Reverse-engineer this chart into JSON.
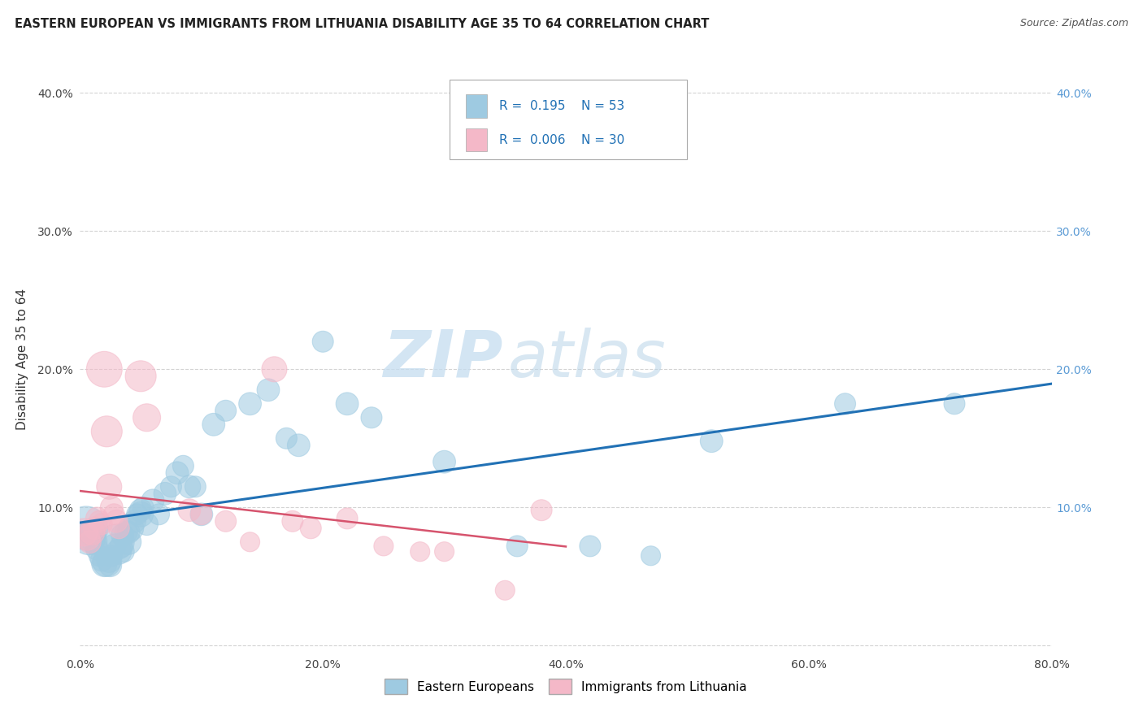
{
  "title": "EASTERN EUROPEAN VS IMMIGRANTS FROM LITHUANIA DISABILITY AGE 35 TO 64 CORRELATION CHART",
  "source": "Source: ZipAtlas.com",
  "ylabel": "Disability Age 35 to 64",
  "xlim": [
    0.0,
    0.8
  ],
  "ylim": [
    -0.005,
    0.42
  ],
  "xticks": [
    0.0,
    0.2,
    0.4,
    0.6,
    0.8
  ],
  "xticklabels": [
    "0.0%",
    "20.0%",
    "40.0%",
    "60.0%",
    "80.0%"
  ],
  "yticks": [
    0.0,
    0.1,
    0.2,
    0.3,
    0.4
  ],
  "yticklabels_left": [
    "",
    "10.0%",
    "20.0%",
    "30.0%",
    "40.0%"
  ],
  "yticklabels_right": [
    "",
    "10.0%",
    "20.0%",
    "30.0%",
    "40.0%"
  ],
  "legend_R1": "0.195",
  "legend_N1": "53",
  "legend_R2": "0.006",
  "legend_N2": "30",
  "blue_color": "#9ecae1",
  "pink_color": "#f4b8c8",
  "blue_line_color": "#2171b5",
  "pink_line_color": "#d6536d",
  "grid_color": "#c8c8c8",
  "blue_scatter_x": [
    0.005,
    0.007,
    0.01,
    0.012,
    0.014,
    0.016,
    0.018,
    0.02,
    0.022,
    0.024,
    0.025,
    0.026,
    0.028,
    0.03,
    0.032,
    0.034,
    0.035,
    0.036,
    0.038,
    0.04,
    0.04,
    0.042,
    0.045,
    0.047,
    0.05,
    0.05,
    0.052,
    0.055,
    0.06,
    0.065,
    0.07,
    0.075,
    0.08,
    0.085,
    0.09,
    0.095,
    0.1,
    0.11,
    0.12,
    0.14,
    0.155,
    0.17,
    0.18,
    0.2,
    0.22,
    0.24,
    0.3,
    0.36,
    0.42,
    0.47,
    0.52,
    0.63,
    0.72
  ],
  "blue_scatter_y": [
    0.085,
    0.078,
    0.082,
    0.075,
    0.07,
    0.065,
    0.062,
    0.059,
    0.06,
    0.062,
    0.058,
    0.065,
    0.072,
    0.075,
    0.068,
    0.072,
    0.08,
    0.068,
    0.082,
    0.075,
    0.082,
    0.085,
    0.09,
    0.095,
    0.095,
    0.098,
    0.1,
    0.088,
    0.105,
    0.095,
    0.11,
    0.115,
    0.125,
    0.13,
    0.115,
    0.115,
    0.095,
    0.16,
    0.17,
    0.175,
    0.185,
    0.15,
    0.145,
    0.22,
    0.175,
    0.165,
    0.133,
    0.072,
    0.072,
    0.065,
    0.148,
    0.175,
    0.175
  ],
  "blue_scatter_size": [
    300,
    180,
    120,
    100,
    80,
    70,
    80,
    100,
    120,
    100,
    80,
    70,
    90,
    200,
    100,
    80,
    80,
    70,
    80,
    100,
    80,
    100,
    80,
    70,
    100,
    80,
    70,
    80,
    80,
    70,
    80,
    70,
    80,
    70,
    80,
    70,
    80,
    80,
    70,
    80,
    80,
    70,
    80,
    70,
    80,
    70,
    80,
    70,
    70,
    60,
    80,
    70,
    70
  ],
  "pink_scatter_x": [
    0.003,
    0.006,
    0.008,
    0.01,
    0.012,
    0.014,
    0.016,
    0.018,
    0.02,
    0.022,
    0.024,
    0.026,
    0.028,
    0.03,
    0.032,
    0.05,
    0.055,
    0.09,
    0.1,
    0.12,
    0.14,
    0.16,
    0.175,
    0.19,
    0.22,
    0.25,
    0.28,
    0.3,
    0.35,
    0.38
  ],
  "pink_scatter_y": [
    0.082,
    0.078,
    0.075,
    0.082,
    0.085,
    0.092,
    0.09,
    0.088,
    0.2,
    0.155,
    0.115,
    0.1,
    0.095,
    0.09,
    0.085,
    0.195,
    0.165,
    0.098,
    0.095,
    0.09,
    0.075,
    0.2,
    0.09,
    0.085,
    0.092,
    0.072,
    0.068,
    0.068,
    0.04,
    0.098
  ],
  "pink_scatter_size": [
    120,
    100,
    80,
    100,
    80,
    80,
    70,
    70,
    200,
    150,
    100,
    80,
    70,
    80,
    70,
    150,
    120,
    80,
    70,
    70,
    60,
    100,
    70,
    70,
    70,
    60,
    60,
    60,
    60,
    70
  ],
  "legend_label1": "Eastern Europeans",
  "legend_label2": "Immigrants from Lithuania",
  "watermark_zip": "ZIP",
  "watermark_atlas": "atlas"
}
